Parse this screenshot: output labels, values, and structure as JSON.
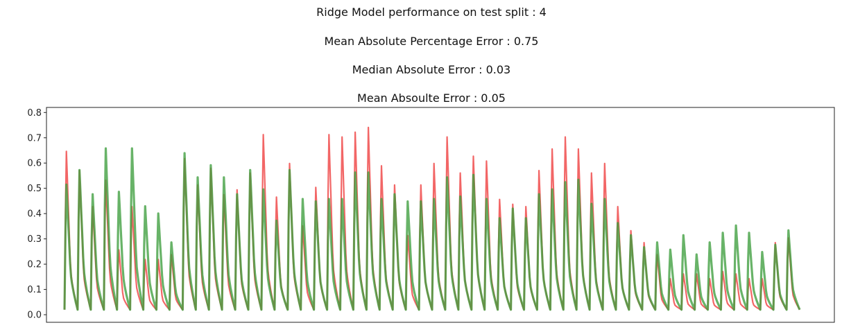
{
  "chart_data": {
    "type": "line",
    "title_lines": [
      "Ridge Model performance on test split : 4",
      "Mean Absolute Percentage Error : 0.75",
      "Median Absolute Error : 0.03",
      "Mean Absoulte Error  : 0.05"
    ],
    "xlabel": "",
    "ylabel": "",
    "ylim": [
      -0.03,
      0.82
    ],
    "y_ticks": [
      "0.0",
      "0.1",
      "0.2",
      "0.3",
      "0.4",
      "0.5",
      "0.6",
      "0.7",
      "0.8"
    ],
    "x_ticks_visible": false,
    "grid": false,
    "legend": "none",
    "series": [
      {
        "color": "#ee3333",
        "peaks": [
          0.68,
          0.6,
          0.45,
          0.56,
          0.27,
          0.45,
          0.23,
          0.23,
          0.25,
          0.65,
          0.54,
          0.61,
          0.5,
          0.52,
          0.59,
          0.75,
          0.49,
          0.63,
          0.37,
          0.53,
          0.75,
          0.74,
          0.76,
          0.78,
          0.62,
          0.54,
          0.33,
          0.54,
          0.63,
          0.74,
          0.59,
          0.66,
          0.64,
          0.48,
          0.46,
          0.45,
          0.6,
          0.69,
          0.74,
          0.69,
          0.59,
          0.63,
          0.45,
          0.35,
          0.3,
          0.25,
          0.15,
          0.17,
          0.17,
          0.15,
          0.18,
          0.17,
          0.15,
          0.15,
          0.3,
          0.32
        ]
      },
      {
        "color": "#3d9e3d",
        "peaks": [
          0.54,
          0.6,
          0.5,
          0.69,
          0.51,
          0.69,
          0.45,
          0.42,
          0.3,
          0.67,
          0.57,
          0.62,
          0.57,
          0.5,
          0.6,
          0.52,
          0.39,
          0.6,
          0.48,
          0.47,
          0.48,
          0.48,
          0.59,
          0.59,
          0.48,
          0.5,
          0.47,
          0.47,
          0.48,
          0.57,
          0.49,
          0.58,
          0.48,
          0.4,
          0.44,
          0.4,
          0.5,
          0.52,
          0.55,
          0.56,
          0.46,
          0.48,
          0.38,
          0.33,
          0.28,
          0.3,
          0.27,
          0.33,
          0.25,
          0.3,
          0.34,
          0.37,
          0.34,
          0.26,
          0.29,
          0.35
        ]
      }
    ]
  }
}
